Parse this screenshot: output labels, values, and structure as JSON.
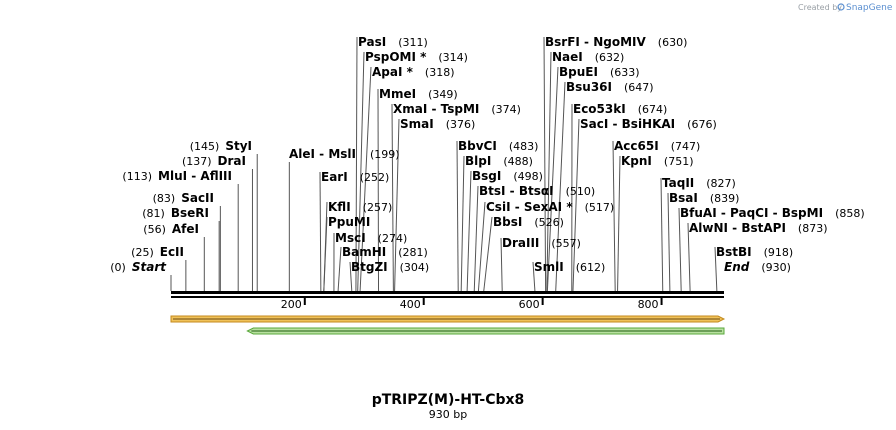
{
  "credit": {
    "prefix": "Created by",
    "brand": "SnapGene"
  },
  "plasmid": {
    "name": "pTRIPZ(M)-HT-Cbx8",
    "length_label": "930 bp",
    "length": 930
  },
  "ruler": {
    "ticks": [
      {
        "value": 200,
        "label": "200"
      },
      {
        "value": 400,
        "label": "400"
      },
      {
        "value": 600,
        "label": "600"
      },
      {
        "value": 800,
        "label": "800"
      }
    ]
  },
  "colors": {
    "feature_orange": "#f0c25a",
    "feature_orange_edge": "#c48a1c",
    "feature_green": "#b8e0a0",
    "feature_green_edge": "#5aa83c"
  },
  "features": [
    {
      "name": "orange-feature-arrow",
      "start": 0,
      "end": 930,
      "direction": "forward",
      "color": "#f0c25a"
    },
    {
      "name": "green-feature-arrow",
      "start": 120,
      "end": 930,
      "direction": "reverse",
      "color": "#b8e0a0"
    }
  ],
  "sites": [
    {
      "pos": "(0)",
      "label": "Start",
      "loc": 0,
      "italic": true
    },
    {
      "pos": "(25)",
      "label": "EcII",
      "loc": 25
    },
    {
      "pos": "(56)",
      "label": "AfeI",
      "loc": 56
    },
    {
      "pos": "(81)",
      "label": "BseRI",
      "loc": 81
    },
    {
      "pos": "(83)",
      "label": "SacII",
      "loc": 83
    },
    {
      "pos": "(113)",
      "label": "MluI - AflIII",
      "loc": 113
    },
    {
      "pos": "(137)",
      "label": "DraI",
      "loc": 137
    },
    {
      "pos": "(145)",
      "label": "StyI",
      "loc": 145
    },
    {
      "pos": "(199)",
      "label": "AleI - MslI",
      "loc": 199
    },
    {
      "pos": "(252)",
      "label": "EarI",
      "loc": 252
    },
    {
      "pos": "(257)",
      "label": "KflI",
      "loc": 257
    },
    {
      "pos": "",
      "label": "PpuMI",
      "loc": 257
    },
    {
      "pos": "(274)",
      "label": "MscI",
      "loc": 274
    },
    {
      "pos": "(281)",
      "label": "BamHI",
      "loc": 281
    },
    {
      "pos": "(304)",
      "label": "BtgZI",
      "loc": 304
    },
    {
      "pos": "(311)",
      "label": "PasI",
      "loc": 311
    },
    {
      "pos": "(314)",
      "label": "PspOMI *",
      "loc": 314
    },
    {
      "pos": "(318)",
      "label": "ApaI *",
      "loc": 318
    },
    {
      "pos": "(349)",
      "label": "MmeI",
      "loc": 349
    },
    {
      "pos": "(374)",
      "label": "XmaI - TspMI",
      "loc": 374
    },
    {
      "pos": "(376)",
      "label": "SmaI",
      "loc": 376
    },
    {
      "pos": "(483)",
      "label": "BbvCI",
      "loc": 483
    },
    {
      "pos": "(488)",
      "label": "BlpI",
      "loc": 488
    },
    {
      "pos": "(498)",
      "label": "BsgI",
      "loc": 498
    },
    {
      "pos": "(510)",
      "label": "BtsI - BtsαI",
      "loc": 510
    },
    {
      "pos": "(517)",
      "label": "CsiI - SexAI *",
      "loc": 517
    },
    {
      "pos": "(526)",
      "label": "BbsI",
      "loc": 526
    },
    {
      "pos": "(557)",
      "label": "DraIII",
      "loc": 557
    },
    {
      "pos": "(612)",
      "label": "SmlI",
      "loc": 612
    },
    {
      "pos": "(630)",
      "label": "BsrFI - NgoMIV",
      "loc": 630
    },
    {
      "pos": "(632)",
      "label": "NaeI",
      "loc": 632
    },
    {
      "pos": "(633)",
      "label": "BpuEI",
      "loc": 633
    },
    {
      "pos": "(647)",
      "label": "Bsu36I",
      "loc": 647
    },
    {
      "pos": "(674)",
      "label": "Eco53kI",
      "loc": 674
    },
    {
      "pos": "(676)",
      "label": "SacI - BsiHKAI",
      "loc": 676
    },
    {
      "pos": "(747)",
      "label": "Acc65I",
      "loc": 747
    },
    {
      "pos": "(751)",
      "label": "KpnI",
      "loc": 751
    },
    {
      "pos": "(827)",
      "label": "TaqII",
      "loc": 827
    },
    {
      "pos": "(839)",
      "label": "BsaI",
      "loc": 839
    },
    {
      "pos": "(858)",
      "label": "BfuAI - PaqCI - BspMI",
      "loc": 858
    },
    {
      "pos": "(873)",
      "label": "AlwNI - BstAPI",
      "loc": 873
    },
    {
      "pos": "(918)",
      "label": "BstBI",
      "loc": 918
    },
    {
      "pos": "(930)",
      "label": "End",
      "loc": 930,
      "italic": true
    }
  ]
}
